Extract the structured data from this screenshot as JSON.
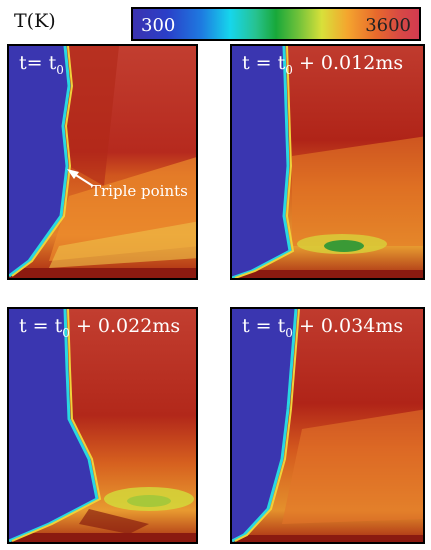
{
  "colorbar": {
    "title": "T(K)",
    "min_label": "300",
    "max_label": "3600"
  },
  "panels": [
    {
      "label_prefix": "t= t",
      "label_sub": "0",
      "label_suffix": ""
    },
    {
      "label_prefix": "t = t",
      "label_sub": "0",
      "label_suffix": "+ 0.012ms"
    },
    {
      "label_prefix": "t = t",
      "label_sub": "0",
      "label_suffix": "+ 0.022ms"
    },
    {
      "label_prefix": "t = t",
      "label_sub": "0",
      "label_suffix": "+ 0.034ms"
    }
  ],
  "annotation": {
    "text": "Triple points"
  },
  "colors": {
    "cold": "#3a36b0",
    "hot_dark": "#8e1a12",
    "hot_red": "#c0392b",
    "orange": "#e8701e",
    "yellow": "#e6c83a",
    "front_cyan": "#29d8e0"
  }
}
